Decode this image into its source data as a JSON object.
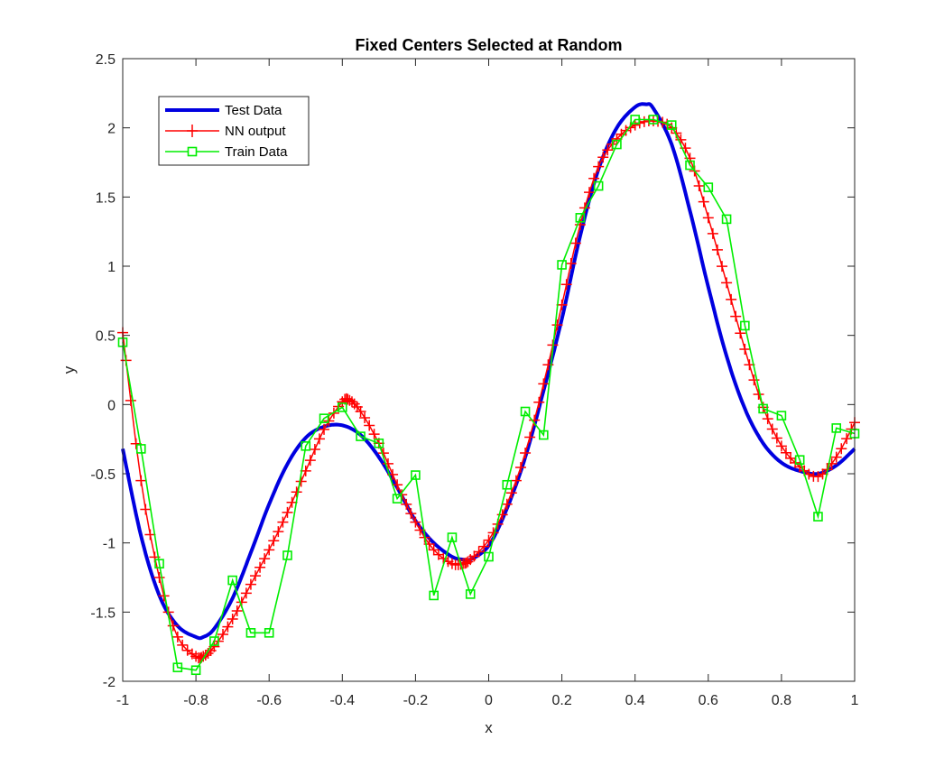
{
  "chart_data": {
    "type": "line",
    "title": "Fixed Centers Selected at Random",
    "xlabel": "x",
    "ylabel": "y",
    "xlim": [
      -1,
      1
    ],
    "ylim": [
      -2,
      2.5
    ],
    "xticks": [
      -1,
      -0.8,
      -0.6,
      -0.4,
      -0.2,
      0,
      0.2,
      0.4,
      0.6,
      0.8,
      1
    ],
    "xtick_labels": [
      "-1",
      "-0.8",
      "-0.6",
      "-0.4",
      "-0.2",
      "0",
      "0.2",
      "0.4",
      "0.6",
      "0.8",
      "1"
    ],
    "yticks": [
      -2,
      -1.5,
      -1,
      -0.5,
      0,
      0.5,
      1,
      1.5,
      2,
      2.5
    ],
    "ytick_labels": [
      "-2",
      "-1.5",
      "-1",
      "-0.5",
      "0",
      "0.5",
      "1",
      "1.5",
      "2",
      "2.5"
    ],
    "grid": false,
    "legend_position": "top-left",
    "series": [
      {
        "name": "Test Data",
        "color": "#0000e0",
        "marker": "none",
        "line_style": "thick",
        "x": [
          -1.0,
          -0.95,
          -0.9,
          -0.85,
          -0.8,
          -0.78,
          -0.75,
          -0.7,
          -0.65,
          -0.6,
          -0.55,
          -0.5,
          -0.45,
          -0.4,
          -0.35,
          -0.3,
          -0.25,
          -0.2,
          -0.15,
          -0.1,
          -0.07,
          -0.05,
          0.0,
          0.05,
          0.1,
          0.15,
          0.2,
          0.25,
          0.3,
          0.35,
          0.4,
          0.43,
          0.45,
          0.5,
          0.55,
          0.6,
          0.65,
          0.7,
          0.75,
          0.8,
          0.85,
          0.9,
          0.95,
          1.0
        ],
        "y": [
          -0.32,
          -0.95,
          -1.38,
          -1.6,
          -1.68,
          -1.68,
          -1.62,
          -1.4,
          -1.07,
          -0.72,
          -0.43,
          -0.24,
          -0.16,
          -0.15,
          -0.22,
          -0.38,
          -0.6,
          -0.84,
          -1.0,
          -1.1,
          -1.12,
          -1.12,
          -1.02,
          -0.75,
          -0.38,
          0.1,
          0.62,
          1.22,
          1.7,
          2.0,
          2.15,
          2.17,
          2.14,
          1.88,
          1.4,
          0.85,
          0.35,
          -0.03,
          -0.28,
          -0.42,
          -0.48,
          -0.5,
          -0.44,
          -0.32
        ]
      },
      {
        "name": "NN output",
        "color": "#ff0000",
        "marker": "plus",
        "line_style": "thin",
        "x": [
          -1.0,
          -0.95,
          -0.9,
          -0.85,
          -0.8,
          -0.78,
          -0.75,
          -0.7,
          -0.65,
          -0.6,
          -0.55,
          -0.5,
          -0.45,
          -0.4,
          -0.38,
          -0.35,
          -0.3,
          -0.25,
          -0.2,
          -0.15,
          -0.1,
          -0.07,
          -0.05,
          0.0,
          0.05,
          0.1,
          0.15,
          0.2,
          0.25,
          0.3,
          0.35,
          0.4,
          0.45,
          0.5,
          0.55,
          0.6,
          0.65,
          0.7,
          0.75,
          0.8,
          0.85,
          0.9,
          0.95,
          1.0
        ],
        "y": [
          0.52,
          -0.55,
          -1.25,
          -1.68,
          -1.82,
          -1.82,
          -1.75,
          -1.55,
          -1.3,
          -1.05,
          -0.78,
          -0.48,
          -0.18,
          0.02,
          0.03,
          -0.05,
          -0.28,
          -0.58,
          -0.85,
          -1.05,
          -1.15,
          -1.15,
          -1.12,
          -0.98,
          -0.72,
          -0.35,
          0.15,
          0.72,
          1.3,
          1.72,
          1.92,
          2.02,
          2.05,
          2.0,
          1.78,
          1.35,
          0.88,
          0.4,
          -0.02,
          -0.3,
          -0.45,
          -0.52,
          -0.38,
          -0.13
        ]
      },
      {
        "name": "Train Data",
        "color": "#00ee00",
        "marker": "square",
        "line_style": "thin",
        "x": [
          -1.0,
          -0.95,
          -0.9,
          -0.85,
          -0.8,
          -0.75,
          -0.7,
          -0.65,
          -0.6,
          -0.55,
          -0.5,
          -0.45,
          -0.4,
          -0.35,
          -0.3,
          -0.25,
          -0.2,
          -0.15,
          -0.1,
          -0.05,
          0.0,
          0.05,
          0.1,
          0.15,
          0.2,
          0.25,
          0.3,
          0.35,
          0.4,
          0.45,
          0.5,
          0.55,
          0.6,
          0.65,
          0.7,
          0.75,
          0.8,
          0.85,
          0.9,
          0.95,
          1.0
        ],
        "y": [
          0.45,
          -0.32,
          -1.15,
          -1.9,
          -1.92,
          -1.71,
          -1.27,
          -1.65,
          -1.65,
          -1.09,
          -0.3,
          -0.1,
          -0.02,
          -0.23,
          -0.28,
          -0.68,
          -0.51,
          -1.38,
          -0.96,
          -1.37,
          -1.1,
          -0.58,
          -0.05,
          -0.22,
          1.01,
          1.35,
          1.58,
          1.88,
          2.06,
          2.06,
          2.02,
          1.73,
          1.57,
          1.34,
          0.57,
          -0.03,
          -0.08,
          -0.4,
          -0.81,
          -0.17,
          -0.21
        ]
      }
    ]
  }
}
